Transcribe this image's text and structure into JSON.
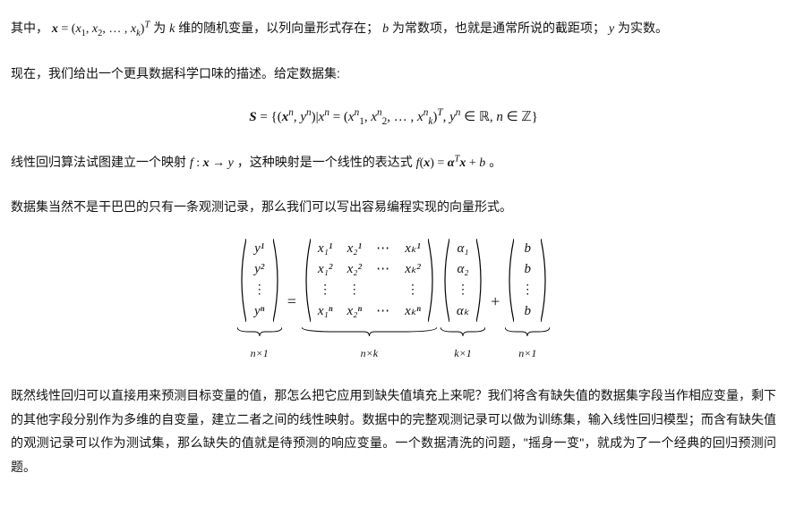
{
  "p1": {
    "a": "其中，",
    "b": " 为 ",
    "c": " 维的随机变量，以列向量形式存在；",
    "d": " 为常数项，也就是通常所说的截距项；",
    "e": " 为实数。",
    "xvec": "x",
    "eq": " = (",
    "x1": "x",
    "x1s": "1",
    "c1": ", ",
    "x2": "x",
    "x2s": "2",
    "c2": ", … , ",
    "xk": "x",
    "xks": "k",
    "rp": ")",
    "sup_t": "T",
    "kvar": "k",
    "bvar": "b",
    "yvar": "y"
  },
  "p2": "现在，我们给出一个更具数据科学口味的描述。给定数据集:",
  "eq1": {
    "S": "S",
    "eq": " = {(",
    "xn": "x",
    "xn_sup": "n",
    "c1": ", ",
    "yn": "y",
    "yn_sup": "n",
    "mid": ")|",
    "xn2": "x",
    "xn2_sup": "n",
    "eq2": " = (",
    "e1b": "x",
    "e1sup": "n",
    "e1sub": "1",
    "cc1": ", ",
    "e2b": "x",
    "e2sup": "n",
    "e2sub": "2",
    "cc2": ", … , ",
    "ekb": "x",
    "eksup": "n",
    "eksub": "k",
    "rp": ")",
    "sup_t": "T",
    "c3": ", ",
    "yn3": "y",
    "yn3_sup": "n",
    "in1": " ∈ ℝ, ",
    "nv": "n",
    "in2": " ∈ ℤ}"
  },
  "p3": {
    "a": "线性回归算法试图建立一个映射 ",
    "f": "f",
    "colon": " : ",
    "x": "x",
    "arrow": " → ",
    "y": "y",
    "b": "，这种映射是一个线性的表达式 ",
    "fx1": "f",
    "lp": "(",
    "x2": "x",
    "rp": ") = ",
    "alpha": "α",
    "sup_t": "T",
    "x3": "x",
    "plus": " + ",
    "bvar": "b",
    "dot": "。"
  },
  "p4": "数据集当然不是干巴巴的只有一条观测记录，那么我们可以写出容易编程实现的向量形式。",
  "mat": {
    "y": {
      "rows": [
        "y¹",
        "y²",
        "⋮",
        "yⁿ"
      ],
      "label": "n×1"
    },
    "X": {
      "rows": [
        [
          "x₁¹",
          "x₂¹",
          "⋯",
          "xₖ¹"
        ],
        [
          "x₁²",
          "x₂²",
          "⋯",
          "xₖ²"
        ],
        [
          "⋮",
          "⋮",
          "",
          "⋮"
        ],
        [
          "x₁ⁿ",
          "x₂ⁿ",
          "⋯",
          "xₖⁿ"
        ]
      ],
      "label": "n×k"
    },
    "a": {
      "rows": [
        "α₁",
        "α₂",
        "⋮",
        "αₖ"
      ],
      "label": "k×1"
    },
    "b": {
      "rows": [
        "b",
        "b",
        "⋮",
        "b"
      ],
      "label": "n×1"
    },
    "eq": "=",
    "plus": "+"
  },
  "p5": "既然线性回归可以直接用来预测目标变量的值，那怎么把它应用到缺失值填充上来呢？我们将含有缺失值的数据集字段当作相应变量，剩下的其他字段分别作为多维的自变量，建立二者之间的线性映射。数据中的完整观测记录可以做为训练集，输入线性回归模型；而含有缺失值的观测记录可以作为测试集，那么缺失的值就是待预测的响应变量。一个数据清洗的问题，\"摇身一变\"，就成为了一个经典的回归预测问题。"
}
